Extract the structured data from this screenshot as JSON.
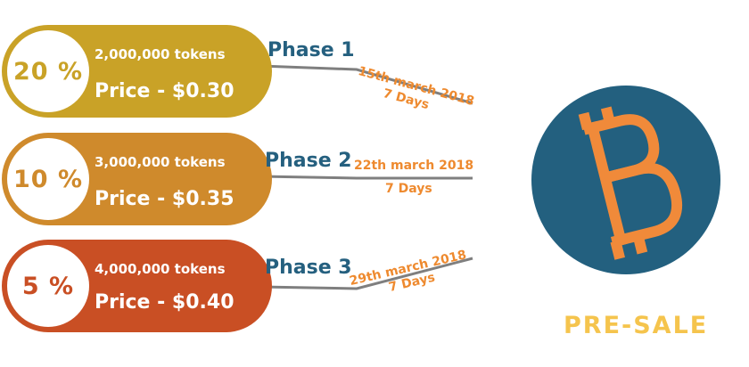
{
  "phases": [
    {
      "percent": "20 %",
      "tokens": "2,000,000 tokens",
      "price": "Price - $0.30",
      "phase": "Phase 1",
      "date": "15th march 2018",
      "duration": "7 Days"
    },
    {
      "percent": "10 %",
      "tokens": "3,000,000 tokens",
      "price": "Price - $0.35",
      "phase": "Phase 2",
      "date": "22th march 2018",
      "duration": "7 Days"
    },
    {
      "percent": "5 %",
      "tokens": "4,000,000 tokens",
      "price": "Price - $0.40",
      "phase": "Phase 3",
      "date": "29th march 2018",
      "duration": "7 Days"
    }
  ],
  "presale_label": "PRE-SALE",
  "icon": "bitcoin-icon",
  "colors": {
    "phase1": "#c9a227",
    "phase2": "#cf8a2c",
    "phase3": "#c94f24",
    "phase_text": "#25607f",
    "date_text": "#ee8a2f",
    "coin_bg": "#23607f",
    "coin_symbol": "#f08a3a",
    "presale_text": "#f5c44d",
    "connector": "#7f7f7f"
  }
}
